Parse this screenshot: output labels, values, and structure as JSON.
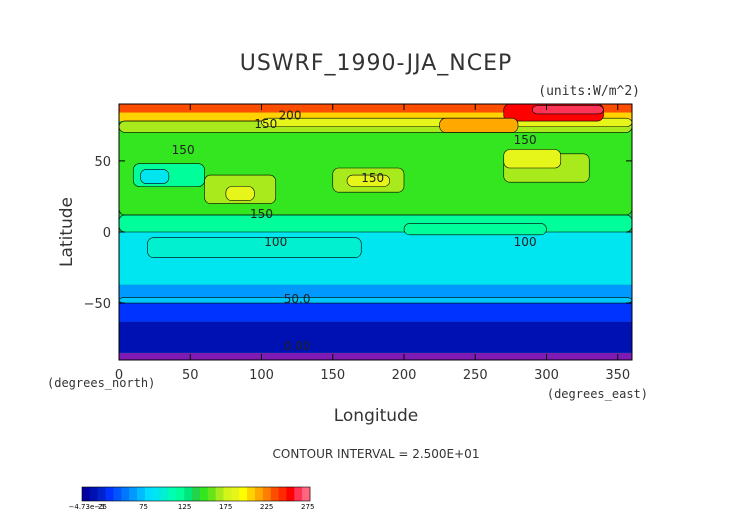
{
  "chart_data": {
    "type": "heatmap",
    "title": "USWRF_1990-JJA_NCEP",
    "units": "(units:W/m^2)",
    "xlabel": "Longitude",
    "ylabel": "Latitude",
    "x_unit_label": "(degrees_east)",
    "y_unit_label": "(degrees_north)",
    "xlim": [
      0,
      360
    ],
    "ylim": [
      -90,
      90
    ],
    "x_ticks": [
      0,
      50,
      100,
      150,
      200,
      250,
      300,
      350
    ],
    "x_tick_labels": [
      "0",
      "50",
      "100",
      "150",
      "200",
      "250",
      "300",
      "350"
    ],
    "y_ticks": [
      50,
      0,
      -50
    ],
    "y_tick_labels": [
      "50",
      "0",
      "−50"
    ],
    "contour_interval": "CONTOUR INTERVAL = 2.500E+01",
    "contour_labels": [
      {
        "text": "200",
        "lon": 120,
        "lat": 79
      },
      {
        "text": "150",
        "lon": 103,
        "lat": 73
      },
      {
        "text": "150",
        "lon": 45,
        "lat": 55
      },
      {
        "text": "150",
        "lon": 178,
        "lat": 35
      },
      {
        "text": "150",
        "lon": 285,
        "lat": 62
      },
      {
        "text": "150",
        "lon": 100,
        "lat": 10
      },
      {
        "text": "100",
        "lon": 110,
        "lat": -10
      },
      {
        "text": "100",
        "lon": 285,
        "lat": -10
      },
      {
        "text": "50.0",
        "lon": 125,
        "lat": -50
      },
      {
        "text": "0.00",
        "lon": 125,
        "lat": -83
      }
    ],
    "bands": [
      {
        "lat_from": -90,
        "lat_to": -85,
        "color": "#7f1ab4"
      },
      {
        "lat_from": -85,
        "lat_to": -63,
        "color": "#0011b3"
      },
      {
        "lat_from": -63,
        "lat_to": -50,
        "color": "#0033ff"
      },
      {
        "lat_from": -50,
        "lat_to": -37,
        "color": "#0099ff"
      },
      {
        "lat_from": -37,
        "lat_to": 0,
        "color": "#00e6f0"
      },
      {
        "lat_from": 0,
        "lat_to": 78,
        "color": "#23d34b"
      },
      {
        "lat_from": 78,
        "lat_to": 84,
        "color": "#ffd200"
      },
      {
        "lat_from": 84,
        "lat_to": 90,
        "color": "#ff4d00"
      }
    ],
    "patches": [
      {
        "lon": [
          0,
          360
        ],
        "lat": [
          0,
          12
        ],
        "color": "#00ff9a"
      },
      {
        "lon": [
          200,
          300
        ],
        "lat": [
          -2,
          6
        ],
        "color": "#00ff9a"
      },
      {
        "lon": [
          20,
          170
        ],
        "lat": [
          -18,
          -4
        ],
        "color": "#00f0d0"
      },
      {
        "lon": [
          0,
          360
        ],
        "lat": [
          12,
          78
        ],
        "color": "#33e61f"
      },
      {
        "lon": [
          150,
          200
        ],
        "lat": [
          28,
          45
        ],
        "color": "#a8ea1c"
      },
      {
        "lon": [
          160,
          190
        ],
        "lat": [
          32,
          40
        ],
        "color": "#e6f51a"
      },
      {
        "lon": [
          60,
          110
        ],
        "lat": [
          20,
          40
        ],
        "color": "#a8ea1c"
      },
      {
        "lon": [
          75,
          95
        ],
        "lat": [
          22,
          32
        ],
        "color": "#e6f51a"
      },
      {
        "lon": [
          270,
          330
        ],
        "lat": [
          35,
          55
        ],
        "color": "#a8ea1c"
      },
      {
        "lon": [
          270,
          310
        ],
        "lat": [
          45,
          58
        ],
        "color": "#e6f51a"
      },
      {
        "lon": [
          10,
          60
        ],
        "lat": [
          32,
          48
        ],
        "color": "#00ff9a"
      },
      {
        "lon": [
          15,
          35
        ],
        "lat": [
          34,
          44
        ],
        "color": "#00e6f0"
      },
      {
        "lon": [
          0,
          360
        ],
        "lat": [
          70,
          78
        ],
        "color": "#a8ea1c"
      },
      {
        "lon": [
          100,
          360
        ],
        "lat": [
          74,
          80
        ],
        "color": "#e6f51a"
      },
      {
        "lon": [
          270,
          340
        ],
        "lat": [
          78,
          90
        ],
        "color": "#ff0000"
      },
      {
        "lon": [
          290,
          340
        ],
        "lat": [
          83,
          89
        ],
        "color": "#ff3355"
      },
      {
        "lon": [
          225,
          280
        ],
        "lat": [
          70,
          80
        ],
        "color": "#ffa800"
      },
      {
        "lon": [
          0,
          360
        ],
        "lat": [
          -50,
          -46
        ],
        "color": "#00c8ff"
      }
    ]
  },
  "colorbar": {
    "colors": [
      "#0000a0",
      "#0011b3",
      "#0022cc",
      "#0033ff",
      "#0055ff",
      "#0077ff",
      "#0099ff",
      "#00bbff",
      "#00ddff",
      "#00e6f0",
      "#00f0d0",
      "#00ffb0",
      "#00ff9a",
      "#00e67a",
      "#23d34b",
      "#33e61f",
      "#66e61a",
      "#a8ea1c",
      "#d4f51a",
      "#e6f51a",
      "#ffff00",
      "#ffd200",
      "#ffa800",
      "#ff8000",
      "#ff4d00",
      "#ff2a00",
      "#ff0000",
      "#ff3355",
      "#ff6680"
    ],
    "tick_labels": [
      {
        "text": "−4.73e−5",
        "pos": 0.02
      },
      {
        "text": "25",
        "pos": 0.09
      },
      {
        "text": "75",
        "pos": 0.27
      },
      {
        "text": "125",
        "pos": 0.45
      },
      {
        "text": "175",
        "pos": 0.63
      },
      {
        "text": "225",
        "pos": 0.81
      },
      {
        "text": "275",
        "pos": 0.99
      }
    ]
  }
}
